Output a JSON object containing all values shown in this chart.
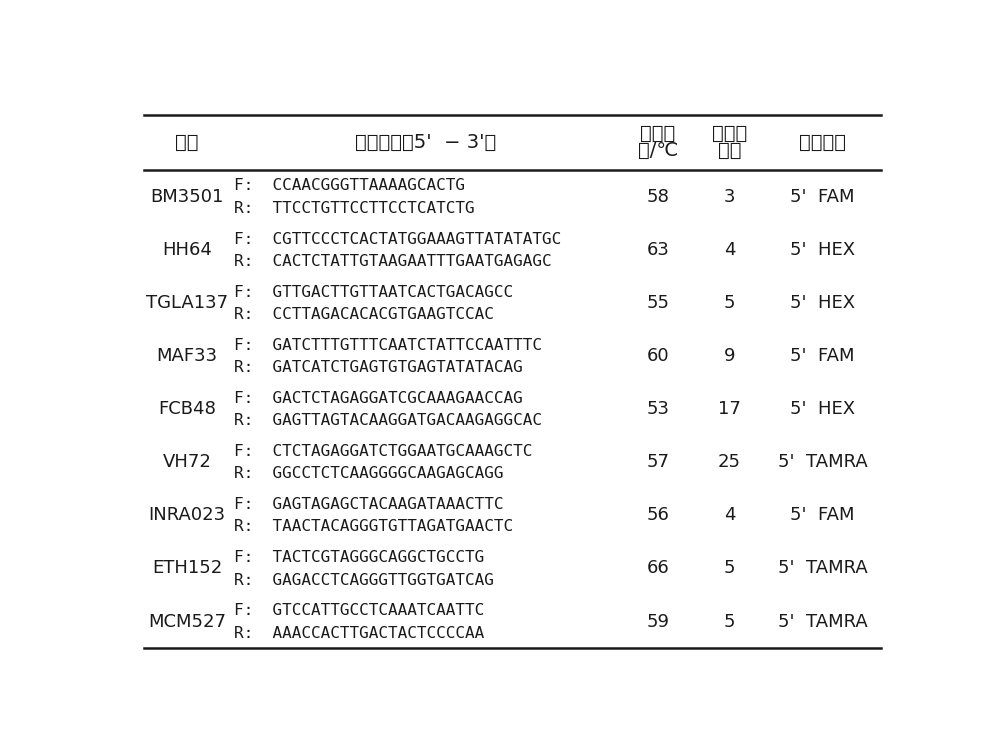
{
  "background_color": "#ffffff",
  "header_row1": [
    "位点",
    "引物序列（5'  − 3'）",
    "退火温",
    "所在染",
    "荧光标记"
  ],
  "header_row2": [
    "",
    "",
    "度/℃",
    "色体",
    ""
  ],
  "rows": [
    {
      "locus": "BM3501",
      "primer_f": "F:  CCAACGGGTTAAAAGCACTG",
      "primer_r": "R:  TTCCTGTTCCTTCCTCATCTG",
      "temp": "58",
      "chrom": "3",
      "label": "5'  FAM"
    },
    {
      "locus": "HH64",
      "primer_f": "F:  CGTTCCCTCACTATGGAAAGTTATATATGC",
      "primer_r": "R:  CACTCTATTGTAAGAATTTGAATGAGAGC",
      "temp": "63",
      "chrom": "4",
      "label": "5'  HEX"
    },
    {
      "locus": "TGLA137",
      "primer_f": "F:  GTTGACTTGTTAATCACTGACAGCC",
      "primer_r": "R:  CCTTAGACACACGTGAAGTCCAC",
      "temp": "55",
      "chrom": "5",
      "label": "5'  HEX"
    },
    {
      "locus": "MAF33",
      "primer_f": "F:  GATCTTTGTTTCAATCTATTCCAATTTC",
      "primer_r": "R:  GATCATCTGAGTGTGAGTATATACAG",
      "temp": "60",
      "chrom": "9",
      "label": "5'  FAM"
    },
    {
      "locus": "FCB48",
      "primer_f": "F:  GACTCTAGAGGATCGCAAAGAACCAG",
      "primer_r": "R:  GAGTTAGTACAAGGATGACAAGAGGCAC",
      "temp": "53",
      "chrom": "17",
      "label": "5'  HEX"
    },
    {
      "locus": "VH72",
      "primer_f": "F:  CTCTAGAGGATCTGGAATGCAAAGCTC",
      "primer_r": "R:  GGCCTCTCAAGGGGCAAGAGCAGG",
      "temp": "57",
      "chrom": "25",
      "label": "5'  TAMRA"
    },
    {
      "locus": "INRA023",
      "primer_f": "F:  GAGTAGAGCTACAAGATAAACTTC",
      "primer_r": "R:  TAACTACAGGGTGTTAGATGAACTC",
      "temp": "56",
      "chrom": "4",
      "label": "5'  FAM"
    },
    {
      "locus": "ETH152",
      "primer_f": "F:  TACTCGTAGGGCAGGCTGCCTG",
      "primer_r": "R:  GAGACCTCAGGGTTGGTGATCAG",
      "temp": "66",
      "chrom": "5",
      "label": "5'  TAMRA"
    },
    {
      "locus": "MCM527",
      "primer_f": "F:  GTCCATTGCCTCAAATCAATTC",
      "primer_r": "R:  AAACCACTTGACTACTCCCCAA",
      "temp": "59",
      "chrom": "5",
      "label": "5'  TAMRA"
    }
  ],
  "text_color": "#1a1a1a",
  "border_color": "#1a1a1a",
  "font_size_header": 14,
  "font_size_body": 12,
  "font_size_locus": 13,
  "font_size_primer": 11.5
}
